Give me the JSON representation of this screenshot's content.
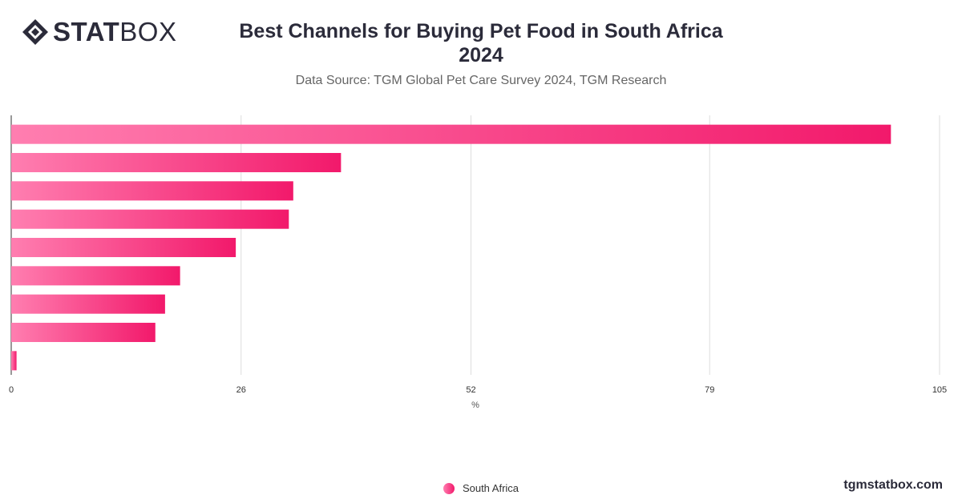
{
  "brand": {
    "logo_bold": "STAT",
    "logo_light": "BOX"
  },
  "header": {
    "title_line1": "Best Channels for Buying Pet Food in South Africa",
    "title_line2": "2024",
    "subtitle": "Data Source: TGM Global Pet Care Survey 2024, TGM Research"
  },
  "chart_data": {
    "type": "bar",
    "orientation": "horizontal",
    "categories": [
      "",
      "",
      "",
      "",
      "",
      "",
      "",
      "",
      ""
    ],
    "series": [
      {
        "name": "South Africa",
        "values": [
          99.5,
          37.3,
          31.9,
          31.4,
          25.4,
          19.1,
          17.4,
          16.3,
          0.6
        ]
      }
    ],
    "xlabel": "%",
    "xlim": [
      0,
      105
    ],
    "xticks": [
      0,
      26,
      52,
      79,
      105
    ],
    "grid": true,
    "legend_position": "bottom-center",
    "colors": {
      "bar_start": "#ff7eb0",
      "bar_end": "#f2196b",
      "grid": "#dddddd",
      "axis": "#333333"
    }
  },
  "footer": {
    "site": "tgmstatbox.com"
  }
}
